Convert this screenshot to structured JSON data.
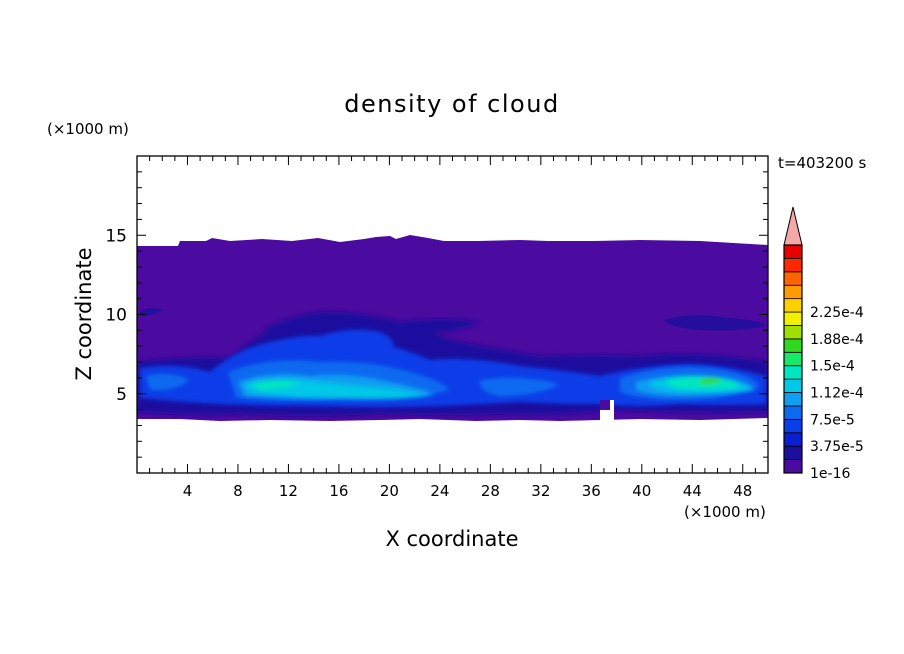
{
  "chart_data": {
    "type": "heatmap",
    "title": "density of cloud",
    "xlabel": "X coordinate",
    "ylabel": "Z coordinate",
    "x_unit": "(×1000 m)",
    "y_unit": "(×1000 m)",
    "time_label": "t=403200 s",
    "xlim": [
      0,
      50
    ],
    "ylim": [
      0,
      20
    ],
    "x_ticks": [
      4,
      8,
      12,
      16,
      20,
      24,
      28,
      32,
      36,
      40,
      44,
      48
    ],
    "y_ticks": [
      5,
      10,
      15
    ],
    "colorbar": {
      "levels": [
        "1e-16",
        "3.75e-5",
        "7.5e-5",
        "1.12e-4",
        "1.5e-4",
        "1.88e-4",
        "2.25e-4"
      ],
      "extend": "max",
      "colors": [
        "#4b0aa0",
        "#1c0f9e",
        "#0a1fcf",
        "#0a3ee8",
        "#0a6bf0",
        "#0e9ef2",
        "#00c8e6",
        "#00e6c0",
        "#18e86a",
        "#30d820",
        "#a0e000",
        "#f0f000",
        "#ffd000",
        "#ff9a00",
        "#ff6400",
        "#ff2800",
        "#e60000",
        "#f4a8a8"
      ]
    },
    "cloud_layer": {
      "z_base": 3.5,
      "z_top": 14.3,
      "bright_cores": [
        {
          "x": [
            8,
            24
          ],
          "z": [
            4.5,
            6.2
          ],
          "peak": "1.12e-4"
        },
        {
          "x": [
            38,
            49
          ],
          "z": [
            4.5,
            6.2
          ],
          "peak": "1.5e-4"
        }
      ]
    }
  }
}
